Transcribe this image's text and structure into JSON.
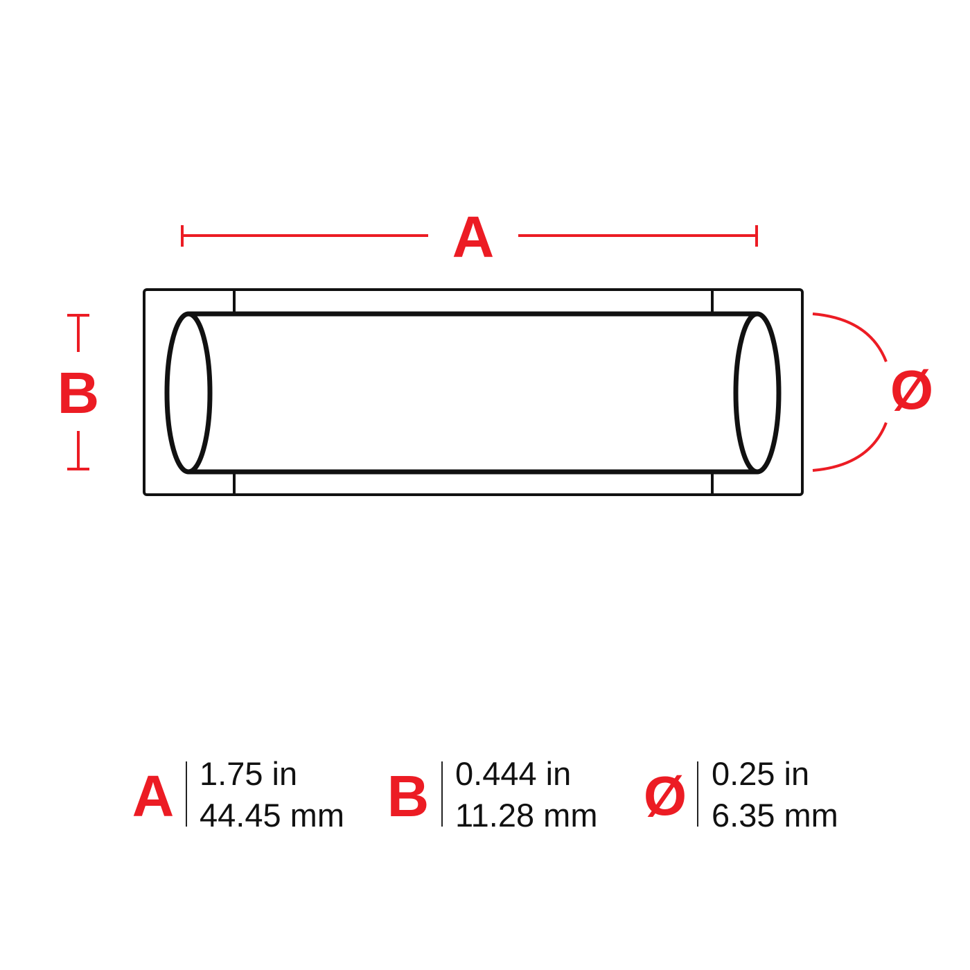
{
  "colors": {
    "accent": "#ec1c24",
    "outline": "#111111",
    "divider": "#222222",
    "background": "#ffffff"
  },
  "drawing": {
    "label_a": "A",
    "label_b": "B",
    "label_diameter": "Ø"
  },
  "specs": [
    {
      "letter": "A",
      "imperial": "1.75 in",
      "metric": "44.45 mm"
    },
    {
      "letter": "B",
      "imperial": "0.444 in",
      "metric": "11.28 mm"
    },
    {
      "letter": "Ø",
      "imperial": "0.25 in",
      "metric": "6.35 mm"
    }
  ]
}
